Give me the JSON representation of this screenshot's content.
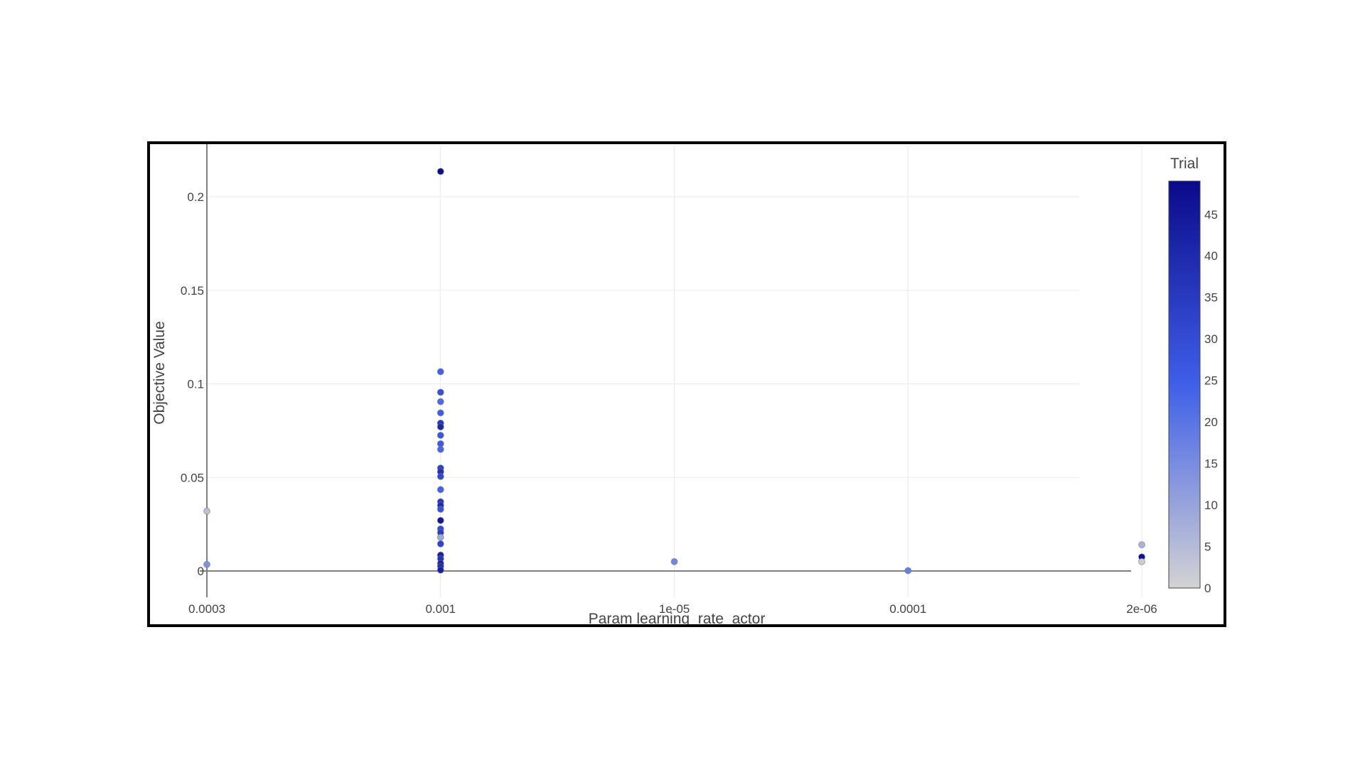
{
  "chart_data": {
    "type": "scatter",
    "xlabel": "Param learning_rate_actor",
    "ylabel": "Objective Value",
    "x_axis_type": "category",
    "categories": [
      "0.0003",
      "0.001",
      "1e-05",
      "0.0001",
      "2e-06"
    ],
    "ylim": [
      -0.011,
      0.225
    ],
    "yticks": [
      0,
      0.05,
      0.1,
      0.15,
      0.2
    ],
    "ytick_labels": [
      "0",
      "0.05",
      "0.1",
      "0.15",
      "0.2"
    ],
    "grid": true,
    "colorbar": {
      "title": "Trial",
      "range": [
        0,
        49
      ],
      "ticks": [
        0,
        5,
        10,
        15,
        20,
        25,
        30,
        35,
        40,
        45
      ],
      "colorscale": [
        "#d3d3d3",
        "#3f5fe8",
        "#0a0a8a"
      ]
    },
    "points": [
      {
        "x": "0.0003",
        "y": 0.032,
        "trial": 4
      },
      {
        "x": "0.0003",
        "y": 0.0035,
        "trial": 14
      },
      {
        "x": "0.001",
        "y": 0.2135,
        "trial": 48
      },
      {
        "x": "0.001",
        "y": 0.1065,
        "trial": 24
      },
      {
        "x": "0.001",
        "y": 0.0955,
        "trial": 29
      },
      {
        "x": "0.001",
        "y": 0.0905,
        "trial": 22
      },
      {
        "x": "0.001",
        "y": 0.0845,
        "trial": 25
      },
      {
        "x": "0.001",
        "y": 0.079,
        "trial": 36
      },
      {
        "x": "0.001",
        "y": 0.077,
        "trial": 41
      },
      {
        "x": "0.001",
        "y": 0.0725,
        "trial": 27
      },
      {
        "x": "0.001",
        "y": 0.068,
        "trial": 26
      },
      {
        "x": "0.001",
        "y": 0.065,
        "trial": 23
      },
      {
        "x": "0.001",
        "y": 0.055,
        "trial": 33
      },
      {
        "x": "0.001",
        "y": 0.053,
        "trial": 38
      },
      {
        "x": "0.001",
        "y": 0.0505,
        "trial": 31
      },
      {
        "x": "0.001",
        "y": 0.0435,
        "trial": 24
      },
      {
        "x": "0.001",
        "y": 0.037,
        "trial": 35
      },
      {
        "x": "0.001",
        "y": 0.035,
        "trial": 40
      },
      {
        "x": "0.001",
        "y": 0.033,
        "trial": 28
      },
      {
        "x": "0.001",
        "y": 0.027,
        "trial": 45
      },
      {
        "x": "0.001",
        "y": 0.0225,
        "trial": 30
      },
      {
        "x": "0.001",
        "y": 0.0205,
        "trial": 34
      },
      {
        "x": "0.001",
        "y": 0.018,
        "trial": 9
      },
      {
        "x": "0.001",
        "y": 0.0145,
        "trial": 32
      },
      {
        "x": "0.001",
        "y": 0.0085,
        "trial": 42
      },
      {
        "x": "0.001",
        "y": 0.0065,
        "trial": 37
      },
      {
        "x": "0.001",
        "y": 0.004,
        "trial": 44
      },
      {
        "x": "0.001",
        "y": 0.0025,
        "trial": 39
      },
      {
        "x": "0.001",
        "y": 0.0005,
        "trial": 43
      },
      {
        "x": "1e-05",
        "y": 0.005,
        "trial": 16
      },
      {
        "x": "0.0001",
        "y": 0.0002,
        "trial": 18
      },
      {
        "x": "2e-06",
        "y": 0.014,
        "trial": 7
      },
      {
        "x": "2e-06",
        "y": 0.0075,
        "trial": 47
      },
      {
        "x": "2e-06",
        "y": 0.005,
        "trial": 1
      }
    ]
  }
}
